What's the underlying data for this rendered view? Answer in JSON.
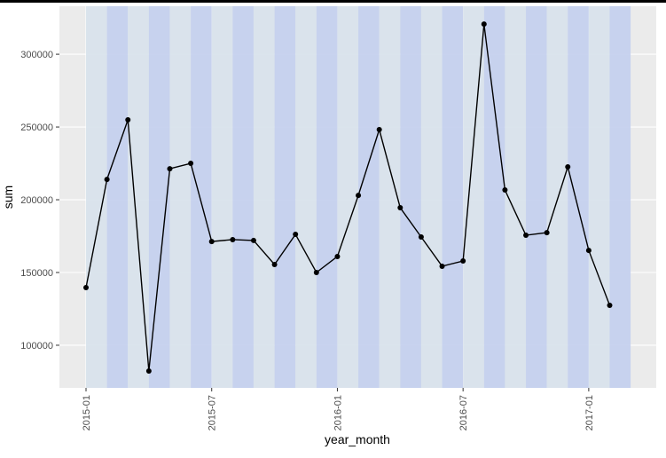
{
  "chart_data": {
    "type": "line",
    "x_label": "year_month",
    "y_label": "sum",
    "x": [
      "2015-01",
      "2015-02",
      "2015-03",
      "2015-04",
      "2015-05",
      "2015-06",
      "2015-07",
      "2015-08",
      "2015-09",
      "2015-10",
      "2015-11",
      "2015-12",
      "2016-01",
      "2016-02",
      "2016-03",
      "2016-04",
      "2016-05",
      "2016-06",
      "2016-07",
      "2016-08",
      "2016-09",
      "2016-10",
      "2016-11",
      "2016-12",
      "2017-01",
      "2017-02"
    ],
    "values": [
      139600,
      214000,
      254900,
      82300,
      221300,
      225000,
      171300,
      172600,
      172000,
      155500,
      176200,
      150000,
      161000,
      203000,
      248200,
      194500,
      174400,
      154300,
      157900,
      320700,
      206700,
      175600,
      177400,
      222600,
      165200,
      127400
    ],
    "color": "#000000",
    "band_colors": [
      "#d9e3ec",
      "#c5d1ee"
    ],
    "ylim": [
      70700,
      333000
    ],
    "yticks": [
      100000,
      150000,
      200000,
      250000,
      300000
    ],
    "xticks": [
      "2015-01",
      "2015-07",
      "2016-01",
      "2016-07",
      "2017-01"
    ],
    "grid": true
  }
}
